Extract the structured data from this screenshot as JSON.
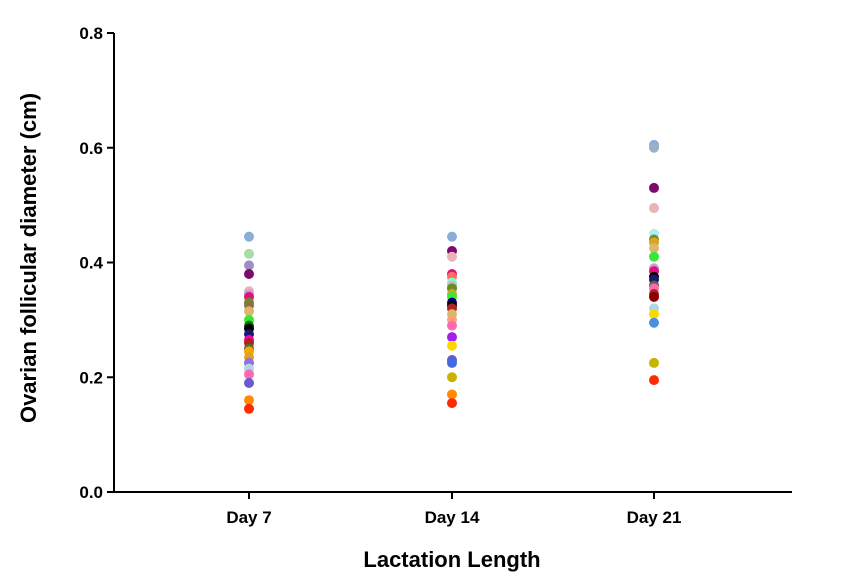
{
  "chart_data": {
    "type": "scatter",
    "title": "",
    "xlabel": "Lactation Length",
    "ylabel": "Ovarian follicular diameter (cm)",
    "categories": [
      "Day 7",
      "Day 14",
      "Day 21"
    ],
    "ylim": [
      0,
      0.8
    ],
    "yticks": [
      "0.0",
      "0.2",
      "0.4",
      "0.6",
      "0.8"
    ],
    "grid": false,
    "points": [
      {
        "category": "Day 7",
        "value": 0.445,
        "color": "#8aaed6"
      },
      {
        "category": "Day 7",
        "value": 0.415,
        "color": "#a8dca8"
      },
      {
        "category": "Day 7",
        "value": 0.395,
        "color": "#9b8fc4"
      },
      {
        "category": "Day 7",
        "value": 0.38,
        "color": "#7d0a6e"
      },
      {
        "category": "Day 7",
        "value": 0.35,
        "color": "#e8b4b8"
      },
      {
        "category": "Day 7",
        "value": 0.345,
        "color": "#c9a0dc"
      },
      {
        "category": "Day 7",
        "value": 0.34,
        "color": "#e0117f"
      },
      {
        "category": "Day 7",
        "value": 0.33,
        "color": "#6b8e23"
      },
      {
        "category": "Day 7",
        "value": 0.325,
        "color": "#8b6f47"
      },
      {
        "category": "Day 7",
        "value": 0.315,
        "color": "#d9b86c"
      },
      {
        "category": "Day 7",
        "value": 0.3,
        "color": "#39e639"
      },
      {
        "category": "Day 7",
        "value": 0.29,
        "color": "#008000"
      },
      {
        "category": "Day 7",
        "value": 0.285,
        "color": "#000000"
      },
      {
        "category": "Day 7",
        "value": 0.275,
        "color": "#191970"
      },
      {
        "category": "Day 7",
        "value": 0.265,
        "color": "#ff00aa"
      },
      {
        "category": "Day 7",
        "value": 0.26,
        "color": "#b22222"
      },
      {
        "category": "Day 7",
        "value": 0.25,
        "color": "#556b2f"
      },
      {
        "category": "Day 7",
        "value": 0.245,
        "color": "#ffa500"
      },
      {
        "category": "Day 7",
        "value": 0.235,
        "color": "#daa520"
      },
      {
        "category": "Day 7",
        "value": 0.225,
        "color": "#9370db"
      },
      {
        "category": "Day 7",
        "value": 0.215,
        "color": "#add8e6"
      },
      {
        "category": "Day 7",
        "value": 0.205,
        "color": "#ff69b4"
      },
      {
        "category": "Day 7",
        "value": 0.19,
        "color": "#6a5acd"
      },
      {
        "category": "Day 7",
        "value": 0.16,
        "color": "#ff8c00"
      },
      {
        "category": "Day 7",
        "value": 0.145,
        "color": "#ff2a00"
      },
      {
        "category": "Day 14",
        "value": 0.445,
        "color": "#8aaed6"
      },
      {
        "category": "Day 14",
        "value": 0.42,
        "color": "#7d0a6e"
      },
      {
        "category": "Day 14",
        "value": 0.41,
        "color": "#e8b4b8"
      },
      {
        "category": "Day 14",
        "value": 0.38,
        "color": "#e0117f"
      },
      {
        "category": "Day 14",
        "value": 0.375,
        "color": "#ff6f61"
      },
      {
        "category": "Day 14",
        "value": 0.365,
        "color": "#7fffd4"
      },
      {
        "category": "Day 14",
        "value": 0.36,
        "color": "#c0c0c0"
      },
      {
        "category": "Day 14",
        "value": 0.355,
        "color": "#6b8e23"
      },
      {
        "category": "Day 14",
        "value": 0.345,
        "color": "#daa520"
      },
      {
        "category": "Day 14",
        "value": 0.34,
        "color": "#39e639"
      },
      {
        "category": "Day 14",
        "value": 0.33,
        "color": "#000080"
      },
      {
        "category": "Day 14",
        "value": 0.325,
        "color": "#000000"
      },
      {
        "category": "Day 14",
        "value": 0.32,
        "color": "#b22222"
      },
      {
        "category": "Day 14",
        "value": 0.31,
        "color": "#d9b86c"
      },
      {
        "category": "Day 14",
        "value": 0.3,
        "color": "#ffa07a"
      },
      {
        "category": "Day 14",
        "value": 0.29,
        "color": "#ff69b4"
      },
      {
        "category": "Day 14",
        "value": 0.27,
        "color": "#a020f0"
      },
      {
        "category": "Day 14",
        "value": 0.255,
        "color": "#ffd700"
      },
      {
        "category": "Day 14",
        "value": 0.23,
        "color": "#6a5acd"
      },
      {
        "category": "Day 14",
        "value": 0.225,
        "color": "#4169e1"
      },
      {
        "category": "Day 14",
        "value": 0.2,
        "color": "#c8b400"
      },
      {
        "category": "Day 14",
        "value": 0.17,
        "color": "#ff8c00"
      },
      {
        "category": "Day 14",
        "value": 0.155,
        "color": "#ff2a00"
      },
      {
        "category": "Day 21",
        "value": 0.605,
        "color": "#8aaed6"
      },
      {
        "category": "Day 21",
        "value": 0.6,
        "color": "#9bb0c8"
      },
      {
        "category": "Day 21",
        "value": 0.53,
        "color": "#7d0a6e"
      },
      {
        "category": "Day 21",
        "value": 0.495,
        "color": "#e8b4b8"
      },
      {
        "category": "Day 21",
        "value": 0.45,
        "color": "#afeeee"
      },
      {
        "category": "Day 21",
        "value": 0.44,
        "color": "#6b8e23"
      },
      {
        "category": "Day 21",
        "value": 0.435,
        "color": "#daa520"
      },
      {
        "category": "Day 21",
        "value": 0.425,
        "color": "#d9b86c"
      },
      {
        "category": "Day 21",
        "value": 0.41,
        "color": "#39e639"
      },
      {
        "category": "Day 21",
        "value": 0.39,
        "color": "#c9a0dc"
      },
      {
        "category": "Day 21",
        "value": 0.385,
        "color": "#e0117f"
      },
      {
        "category": "Day 21",
        "value": 0.375,
        "color": "#000000"
      },
      {
        "category": "Day 21",
        "value": 0.37,
        "color": "#191970"
      },
      {
        "category": "Day 21",
        "value": 0.36,
        "color": "#556b2f"
      },
      {
        "category": "Day 21",
        "value": 0.355,
        "color": "#ff69b4"
      },
      {
        "category": "Day 21",
        "value": 0.345,
        "color": "#b22222"
      },
      {
        "category": "Day 21",
        "value": 0.34,
        "color": "#8b0000"
      },
      {
        "category": "Day 21",
        "value": 0.32,
        "color": "#add8e6"
      },
      {
        "category": "Day 21",
        "value": 0.31,
        "color": "#ffd700"
      },
      {
        "category": "Day 21",
        "value": 0.295,
        "color": "#4a90d9"
      },
      {
        "category": "Day 21",
        "value": 0.225,
        "color": "#c8b400"
      },
      {
        "category": "Day 21",
        "value": 0.195,
        "color": "#ff2a00"
      }
    ]
  }
}
